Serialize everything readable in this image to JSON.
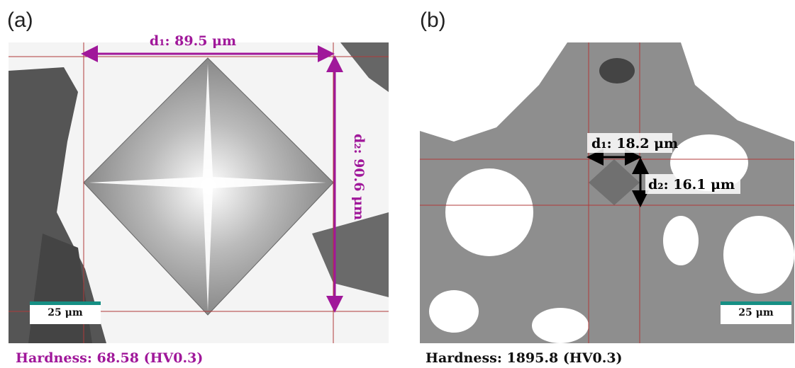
{
  "panels": [
    {
      "label": "(a)",
      "d1": "d₁: 89.5 μm",
      "d2": "d₂: 90.6 μm",
      "scale_bar": "25 μm",
      "hardness": "Hardness: 68.58 (HV0.3)"
    },
    {
      "label": "(b)",
      "d1": "d₁: 18.2 μm",
      "d2": "d₂: 16.1 μm",
      "scale_bar": "25 μm",
      "hardness": "Hardness: 1895.8 (HV0.3)"
    }
  ]
}
